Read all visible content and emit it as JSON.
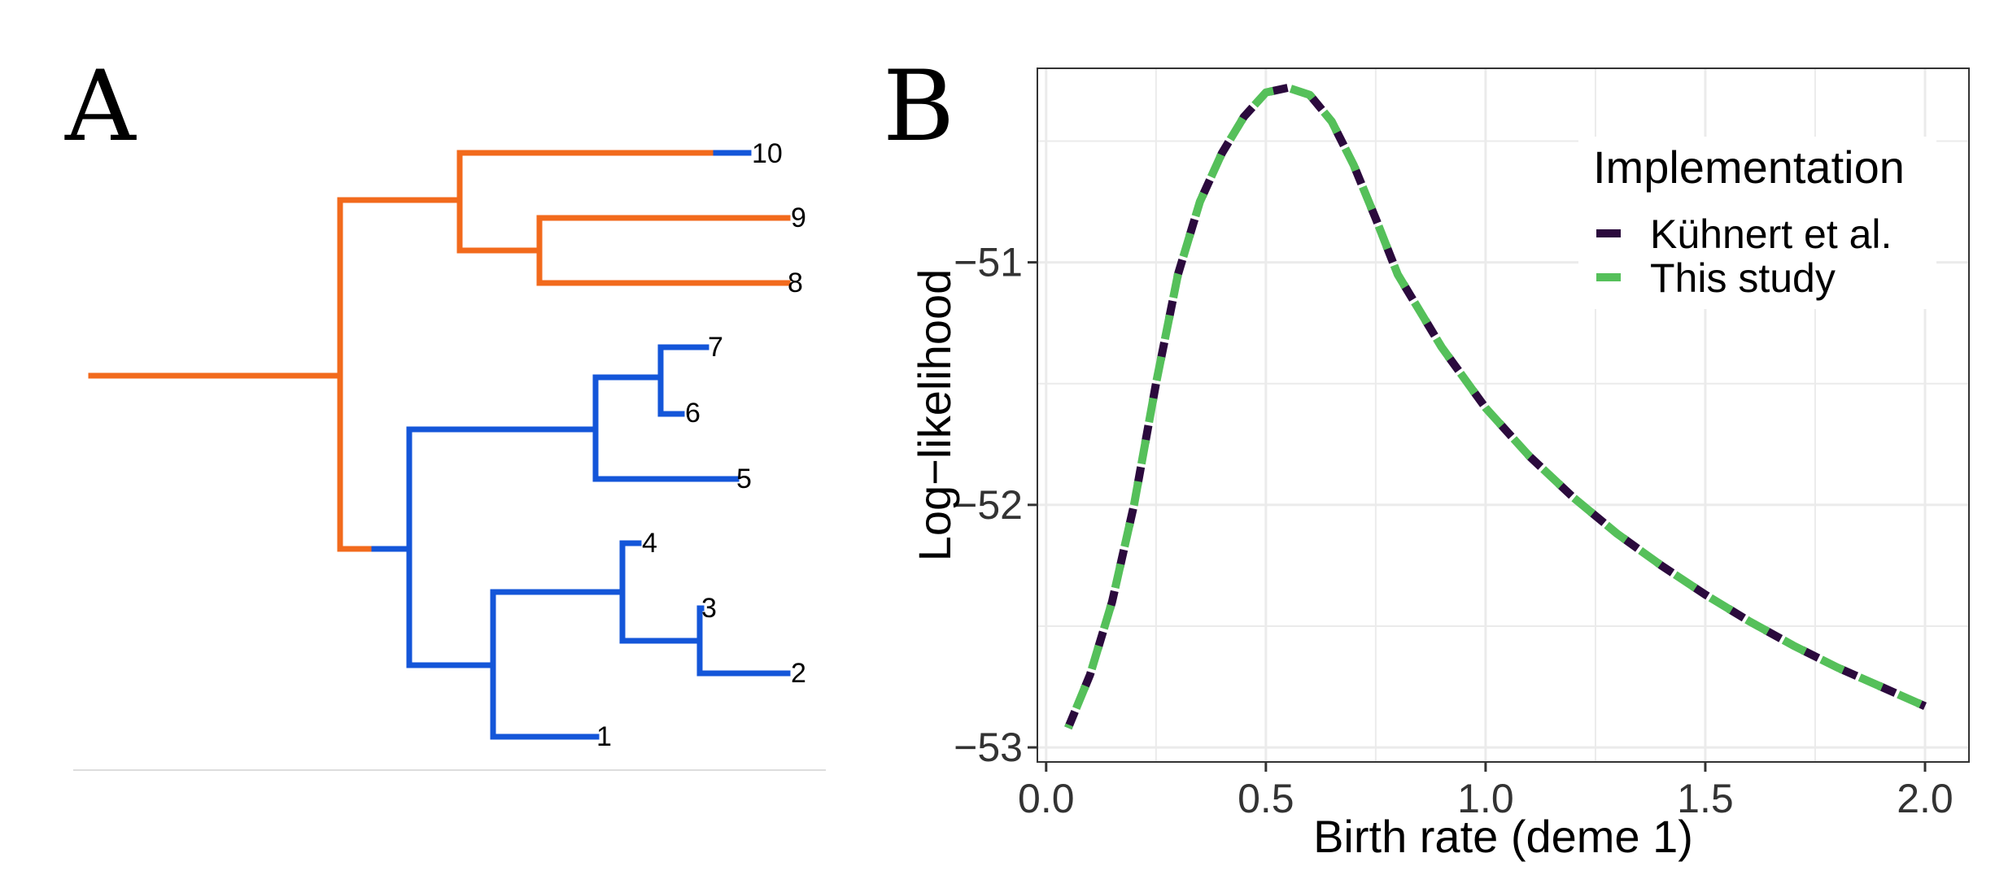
{
  "colors": {
    "orange": "#f26a1c",
    "blue": "#1456d9",
    "dark_purple": "#2b0a3d",
    "green": "#55c05a",
    "grid": "#ebebeb",
    "panel_border": "#333333"
  },
  "panel_a": {
    "letter": "A",
    "tips": [
      "1",
      "2",
      "3",
      "4",
      "5",
      "6",
      "7",
      "8",
      "9",
      "10"
    ]
  },
  "chart_data": {
    "type": "line",
    "panel_letter": "B",
    "title": "",
    "xlabel": "Birth rate (deme 1)",
    "ylabel": "Log−likelihood",
    "xlim": [
      -0.02,
      2.1
    ],
    "ylim": [
      -53.06,
      -50.2
    ],
    "xticks": [
      0.0,
      0.5,
      1.0,
      1.5,
      2.0
    ],
    "xtick_labels": [
      "0.0",
      "0.5",
      "1.0",
      "1.5",
      "2.0"
    ],
    "yticks": [
      -53,
      -52,
      -51
    ],
    "ytick_labels": [
      "−53",
      "−52",
      "−51"
    ],
    "grid": true,
    "legend_position": "top-right",
    "legend_title": "Implementation",
    "series": [
      {
        "name": "Kühnert et al.",
        "color": "#2b0a3d",
        "style": "dashed",
        "x": [
          0.05,
          0.1,
          0.15,
          0.2,
          0.25,
          0.3,
          0.35,
          0.4,
          0.45,
          0.5,
          0.55,
          0.6,
          0.65,
          0.7,
          0.75,
          0.8,
          0.9,
          1.0,
          1.1,
          1.2,
          1.3,
          1.4,
          1.5,
          1.6,
          1.7,
          1.8,
          1.9,
          2.0
        ],
        "y": [
          -52.92,
          -52.7,
          -52.4,
          -52.0,
          -51.5,
          -51.05,
          -50.75,
          -50.55,
          -50.4,
          -50.3,
          -50.28,
          -50.31,
          -50.42,
          -50.6,
          -50.82,
          -51.05,
          -51.35,
          -51.6,
          -51.8,
          -51.97,
          -52.12,
          -52.25,
          -52.37,
          -52.48,
          -52.58,
          -52.67,
          -52.75,
          -52.83
        ]
      },
      {
        "name": "This study",
        "color": "#55c05a",
        "style": "dashed",
        "x": [
          0.05,
          0.1,
          0.15,
          0.2,
          0.25,
          0.3,
          0.35,
          0.4,
          0.45,
          0.5,
          0.55,
          0.6,
          0.65,
          0.7,
          0.75,
          0.8,
          0.9,
          1.0,
          1.1,
          1.2,
          1.3,
          1.4,
          1.5,
          1.6,
          1.7,
          1.8,
          1.9,
          2.0
        ],
        "y": [
          -52.92,
          -52.7,
          -52.4,
          -52.0,
          -51.5,
          -51.05,
          -50.75,
          -50.55,
          -50.4,
          -50.3,
          -50.28,
          -50.31,
          -50.42,
          -50.6,
          -50.82,
          -51.05,
          -51.35,
          -51.6,
          -51.8,
          -51.97,
          -52.12,
          -52.25,
          -52.37,
          -52.48,
          -52.58,
          -52.67,
          -52.75,
          -52.83
        ]
      }
    ]
  }
}
